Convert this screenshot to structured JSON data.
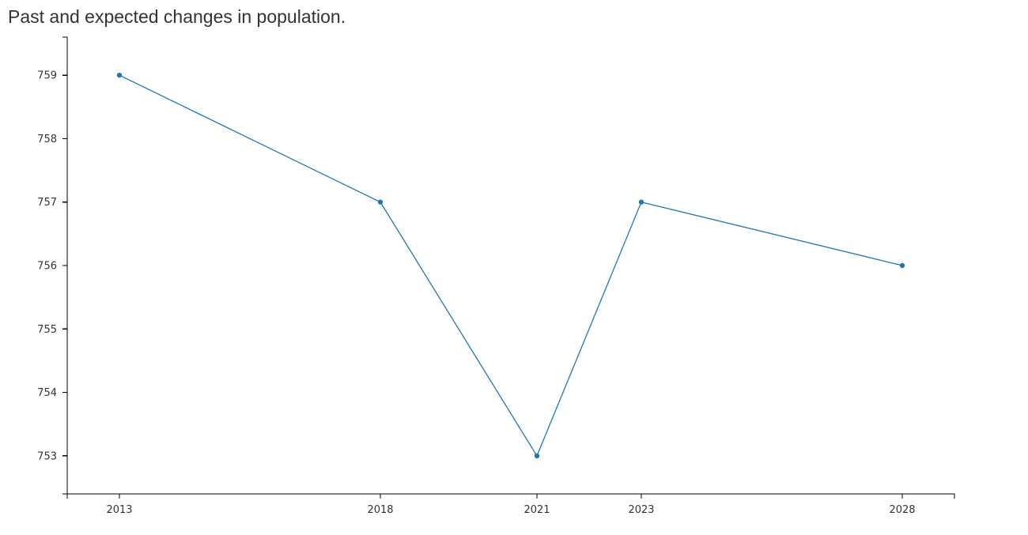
{
  "chart_data": {
    "type": "line",
    "title": "Past and expected changes in population.",
    "xlabel": "",
    "ylabel": "",
    "x": [
      2013,
      2018,
      2021,
      2023,
      2028
    ],
    "xticks": [
      "2013",
      "2018",
      "2021",
      "2023",
      "2028"
    ],
    "xlim": [
      2012,
      2029
    ],
    "yticks": [
      "753",
      "754",
      "755",
      "756",
      "757",
      "758",
      "759"
    ],
    "ylim": [
      752.4,
      759.6
    ],
    "series": [
      {
        "values": [
          759,
          757,
          753,
          757,
          756
        ]
      }
    ],
    "grid": false,
    "legend": "none",
    "colors": {
      "line": "#1f77b4",
      "axis": "#000000",
      "text": "#333333"
    }
  }
}
